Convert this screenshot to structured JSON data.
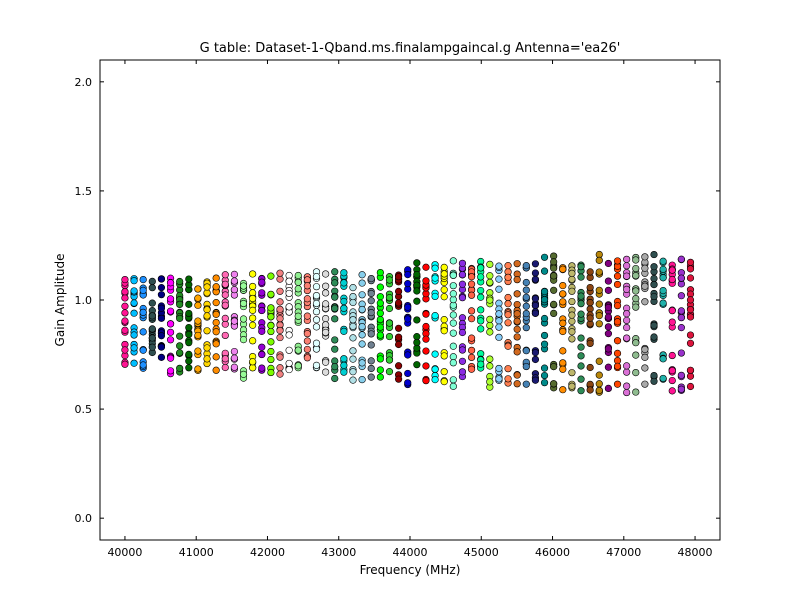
{
  "chart_data": {
    "type": "scatter",
    "title": "G table: Dataset-1-Qband.ms.finalampgaincal.g      Antenna='ea26'",
    "xlabel": "Frequency (MHz)",
    "ylabel": "Gain Amplitude",
    "xlim": [
      39650,
      48350
    ],
    "ylim": [
      -0.1,
      2.1
    ],
    "xticks": [
      40000,
      41000,
      42000,
      43000,
      44000,
      45000,
      46000,
      47000,
      48000
    ],
    "yticks": [
      0.0,
      0.5,
      1.0,
      1.5,
      2.0
    ],
    "xtick_labels": [
      "40000",
      "41000",
      "42000",
      "43000",
      "44000",
      "45000",
      "46000",
      "47000",
      "48000"
    ],
    "ytick_labels": [
      "0.0",
      "0.5",
      "1.0",
      "1.5",
      "2.0"
    ],
    "grid": false,
    "series": [
      {
        "x": [
          40000,
          40128,
          40256,
          40384,
          40512
        ],
        "upper_range": [
          0.84,
          1.1
        ],
        "lower_range": [
          0.68,
          0.84
        ],
        "colors": [
          "#ff1493",
          "#00bfff",
          "#1e90ff",
          "#2f4f4f",
          "#000080"
        ]
      },
      {
        "x": [
          40640,
          40768,
          40896,
          41024
        ],
        "upper_range": [
          0.84,
          1.1
        ],
        "lower_range": [
          0.66,
          0.84
        ],
        "colors": [
          "#ff00ff",
          "#228b22",
          "#006400",
          "#ffa500"
        ]
      },
      {
        "x": [
          41152,
          41280,
          41408,
          41536,
          41664,
          41792,
          41920,
          42048
        ],
        "upper_range": [
          0.86,
          1.12
        ],
        "lower_range": [
          0.64,
          0.86
        ],
        "colors": [
          "#ffd700",
          "#ff8c00",
          "#ff69b4",
          "#ee82ee",
          "#98fb98",
          "#ffff00",
          "#9400d3",
          "#7cfc00"
        ]
      },
      {
        "x": [
          42176,
          42304,
          42432,
          42560,
          42688,
          42816,
          42944,
          43072,
          43200,
          43328,
          43456,
          43584,
          43712,
          43840
        ],
        "upper_range": [
          0.86,
          1.13
        ],
        "lower_range": [
          0.63,
          0.86
        ],
        "colors": [
          "#f08080",
          "#ffffff",
          "#90ee90",
          "#fa8072",
          "#e0ffff",
          "#dcdcdc",
          "#2e8b57",
          "#00ced1",
          "#b0e0e6",
          "#87ceeb",
          "#708090",
          "#00ff00",
          "#32cd32",
          "#8b0000"
        ]
      },
      {
        "x": [
          43968,
          44096,
          44224,
          44352,
          44480,
          44608,
          44736,
          44864,
          44992,
          45120,
          45248,
          45376,
          45504,
          45632,
          45760
        ],
        "upper_range": [
          0.86,
          1.18
        ],
        "lower_range": [
          0.6,
          0.86
        ],
        "colors": [
          "#0000cd",
          "#006400",
          "#ff0000",
          "#00ffff",
          "#ffff00",
          "#7fffd4",
          "#8a2be2",
          "#ff6347",
          "#00fa9a",
          "#adff2f",
          "#87cefa",
          "#ff7f50",
          "#d2691e",
          "#4682b4",
          "#191970"
        ]
      },
      {
        "x": [
          45888,
          46016,
          46144,
          46272,
          46400,
          46528,
          46656,
          46784,
          46912,
          47040,
          47168,
          47296,
          47424,
          47552,
          47680,
          47808,
          47936
        ],
        "upper_range": [
          0.86,
          1.21
        ],
        "lower_range": [
          0.57,
          0.86
        ],
        "colors": [
          "#008b8b",
          "#556b2f",
          "#ff8c00",
          "#bdb76b",
          "#2e8b57",
          "#8b4513",
          "#b8860b",
          "#800080",
          "#ff4500",
          "#da70d6",
          "#8fbc8f",
          "#a9a9a9",
          "#2f4f4f",
          "#20b2aa",
          "#ff1493",
          "#9932cc",
          "#dc143c"
        ]
      }
    ]
  }
}
